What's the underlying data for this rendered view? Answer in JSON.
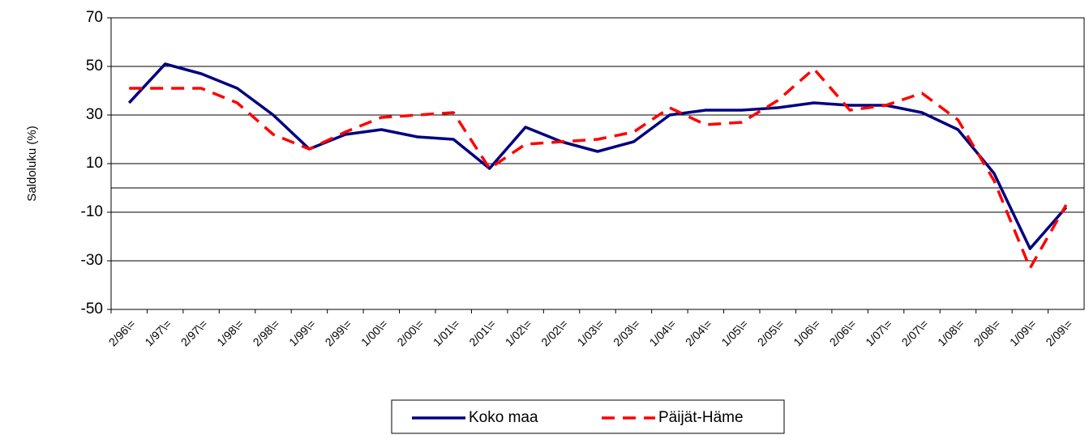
{
  "chart_data": {
    "type": "line",
    "y_label": "Saldoluku (%)",
    "categories": [
      "2/96\\=",
      "1/97\\=",
      "2/97\\=",
      "1/98\\=",
      "2/98\\=",
      "1/99\\=",
      "2/99\\=",
      "1/00\\=",
      "2/00\\=",
      "1/01\\=",
      "2/01\\=",
      "1/02\\=",
      "2/02\\=",
      "1/03\\=",
      "2/03\\=",
      "1/04\\=",
      "2/04\\=",
      "1/05\\=",
      "2/05\\=",
      "1/06\\=",
      "2/06\\=",
      "1/07\\=",
      "2/07\\=",
      "1/08\\=",
      "2/08\\=",
      "1/09\\=",
      "2/09\\="
    ],
    "series": [
      {
        "name": "Koko maa",
        "color": "#000080",
        "dashed": false,
        "values": [
          35,
          51,
          47,
          41,
          30,
          16,
          22,
          24,
          21,
          20,
          8,
          25,
          19,
          15,
          19,
          30,
          32,
          32,
          33,
          35,
          34,
          34,
          31,
          24,
          6,
          -25,
          -8
        ]
      },
      {
        "name": "Päijät-Häme",
        "color": "#ff0000",
        "dashed": true,
        "values": [
          41,
          41,
          41,
          35,
          22,
          16,
          23,
          29,
          30,
          31,
          8,
          18,
          19,
          20,
          23,
          33,
          26,
          27,
          36,
          49,
          32,
          34,
          39,
          28,
          3,
          -33,
          -7
        ]
      }
    ],
    "ylim": [
      -50,
      70
    ],
    "yticks": [
      -50,
      -30,
      -10,
      10,
      30,
      50,
      70
    ],
    "grid": true
  }
}
